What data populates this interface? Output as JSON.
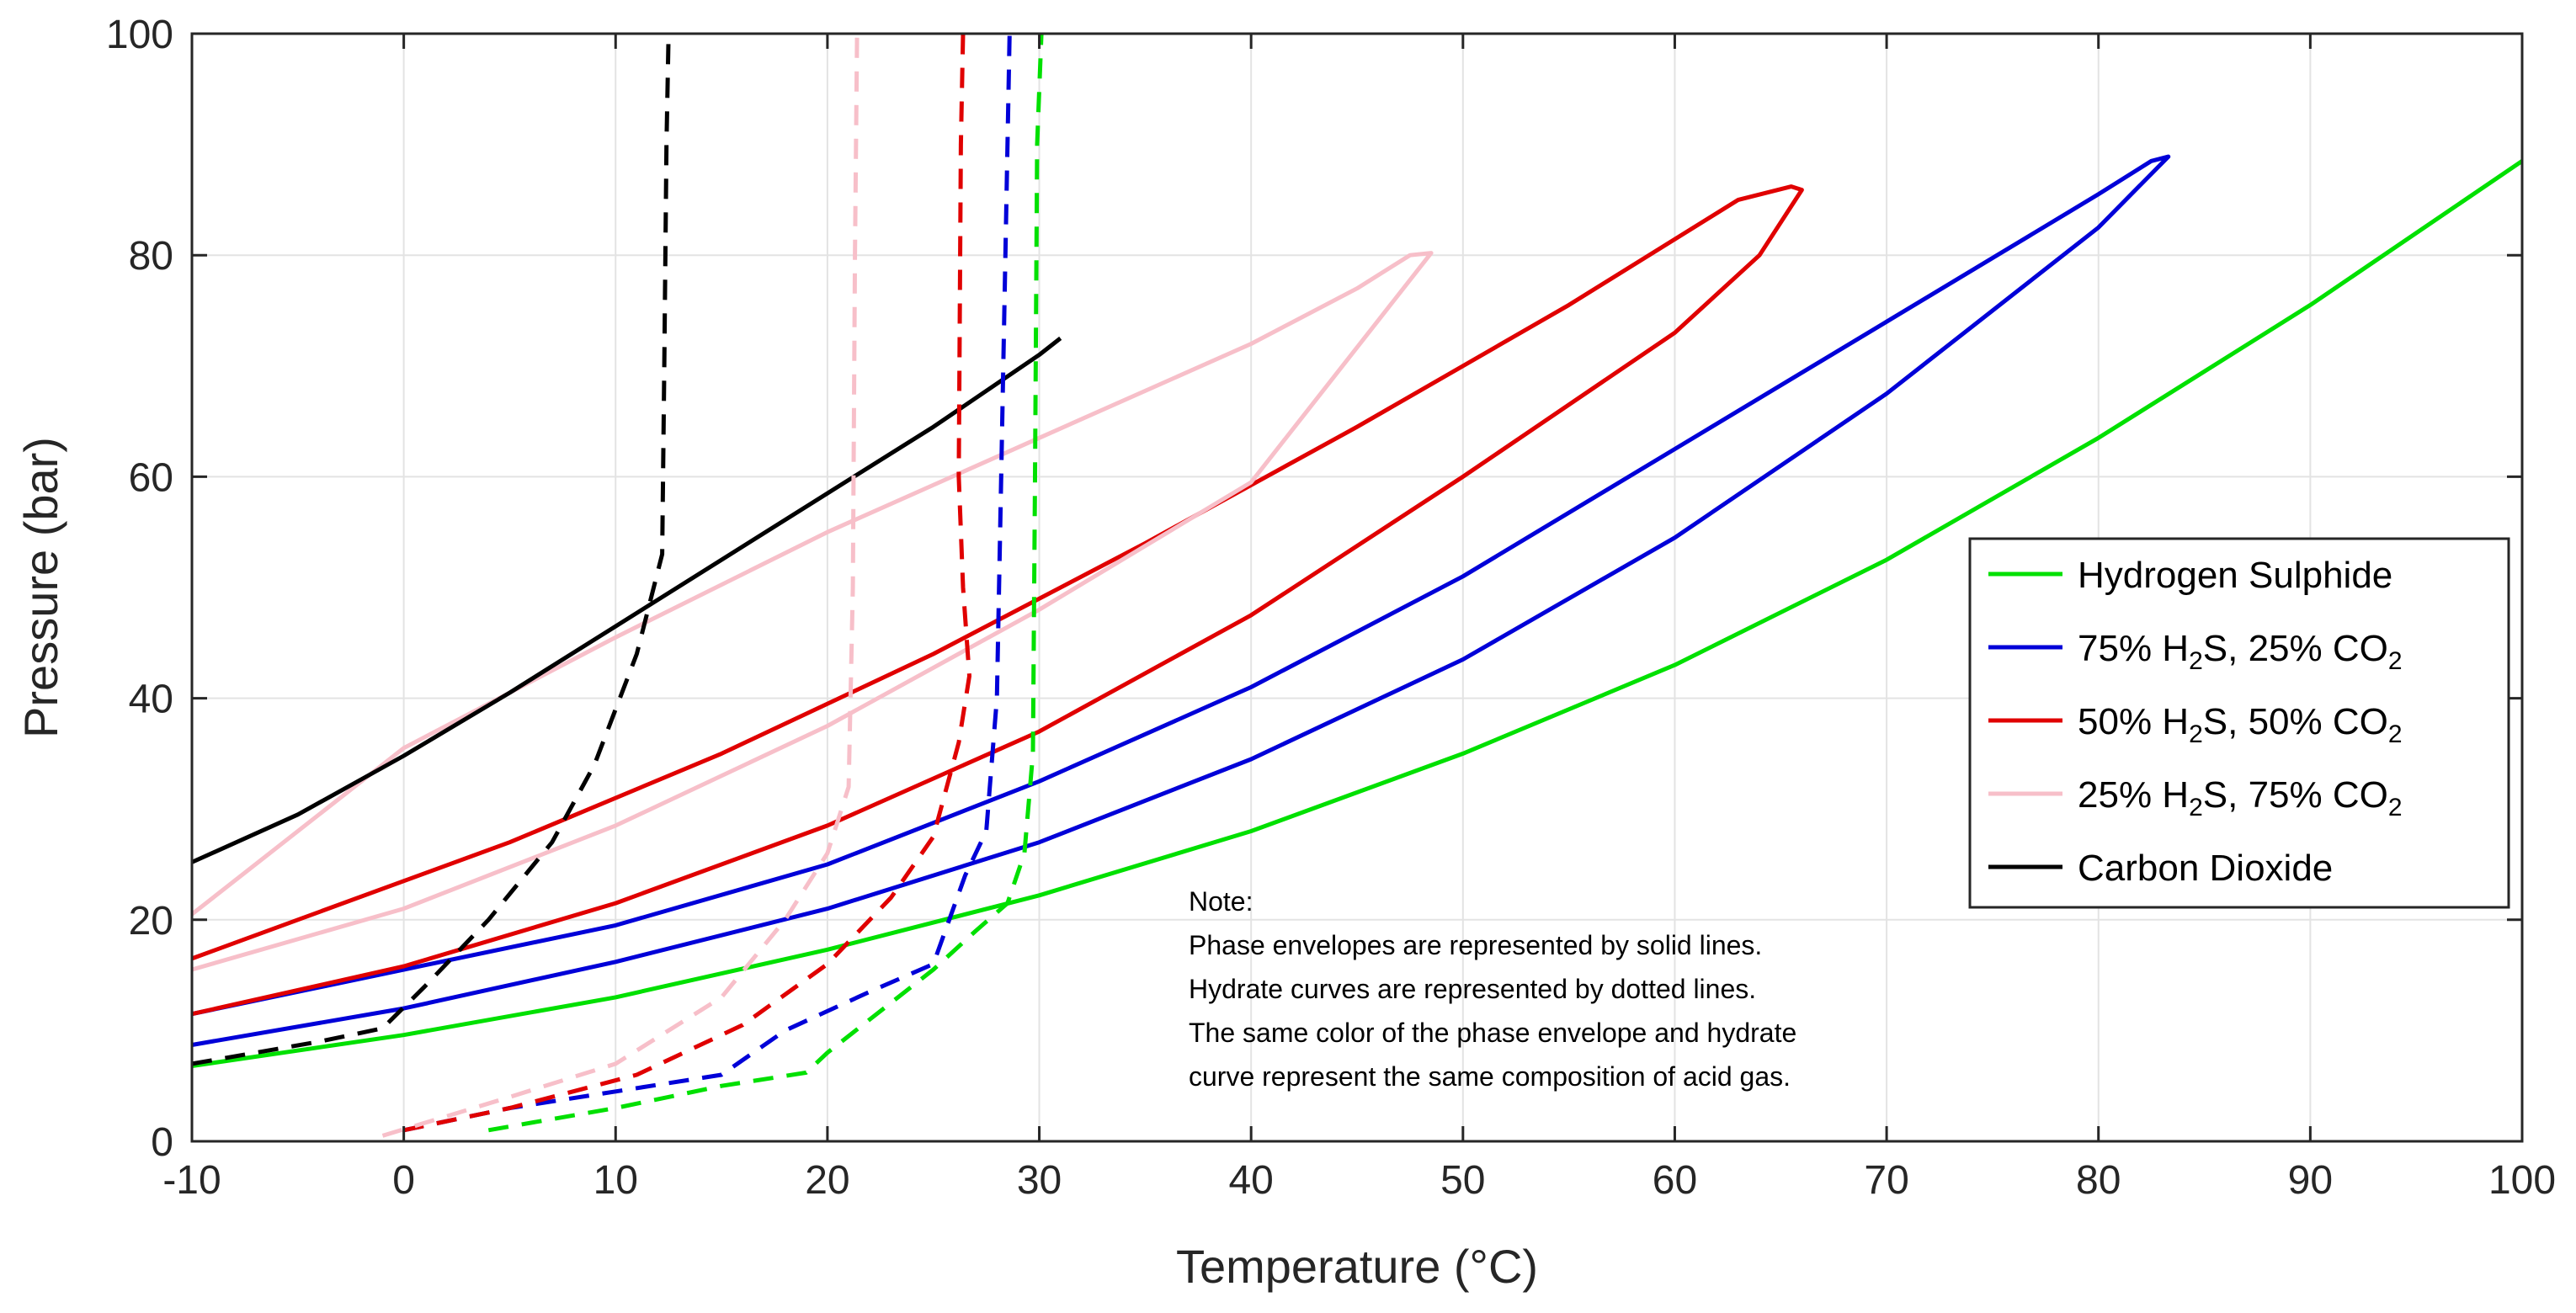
{
  "chart_data": {
    "type": "line",
    "xlabel": "Temperature (°C)",
    "ylabel": "Pressure (bar)",
    "xlim": [
      -10,
      100
    ],
    "ylim": [
      0,
      100
    ],
    "xticks": [
      -10,
      0,
      10,
      20,
      30,
      40,
      50,
      60,
      70,
      80,
      90,
      100
    ],
    "yticks": [
      0,
      20,
      40,
      60,
      80,
      100
    ],
    "grid": true,
    "legend_position": "middle-right",
    "legend": [
      {
        "name": "Hydrogen Sulphide",
        "parts": [
          {
            "t": "Hydrogen Sulphide",
            "sub": false
          }
        ]
      },
      {
        "name": "75% H2S, 25% CO2",
        "parts": [
          {
            "t": "75% H",
            "sub": false
          },
          {
            "t": "2",
            "sub": true
          },
          {
            "t": "S, 25% CO",
            "sub": false
          },
          {
            "t": "2",
            "sub": true
          }
        ]
      },
      {
        "name": "50% H2S, 50% CO2",
        "parts": [
          {
            "t": "50% H",
            "sub": false
          },
          {
            "t": "2",
            "sub": true
          },
          {
            "t": "S, 50% CO",
            "sub": false
          },
          {
            "t": "2",
            "sub": true
          }
        ]
      },
      {
        "name": "25% H2S, 75% CO2",
        "parts": [
          {
            "t": "25% H",
            "sub": false
          },
          {
            "t": "2",
            "sub": true
          },
          {
            "t": "S, 75% CO",
            "sub": false
          },
          {
            "t": "2",
            "sub": true
          }
        ]
      },
      {
        "name": "Carbon Dioxide",
        "parts": [
          {
            "t": "Carbon Dioxide",
            "sub": false
          }
        ]
      }
    ],
    "note": [
      "Note:",
      "Phase envelopes are represented by solid lines.",
      "Hydrate curves are represented by dotted lines.",
      "The same color of the phase envelope and hydrate",
      "curve represent the same composition of acid gas."
    ],
    "colors": {
      "h2s": "#00e000",
      "h2s75": "#0000d8",
      "h2s50": "#e00000",
      "h2s25": "#f7bfc9",
      "co2": "#000000"
    },
    "series": [
      {
        "name": "Hydrogen Sulphide phase envelope",
        "key": "h2s",
        "style": "solid",
        "x": [
          -10,
          0,
          10,
          20,
          30,
          40,
          50,
          60,
          70,
          80,
          90,
          100
        ],
        "y": [
          6.8,
          9.6,
          13,
          17.3,
          22.2,
          28,
          35,
          43,
          52.5,
          63.5,
          75.5,
          88.5
        ]
      },
      {
        "name": "75% H2S, 25% CO2 phase envelope",
        "key": "h2s75",
        "style": "solid",
        "x": [
          -10,
          0,
          10,
          20,
          30,
          40,
          50,
          60,
          70,
          80,
          83.3,
          82.5,
          80,
          70,
          60,
          50,
          40,
          30,
          20,
          10,
          0,
          -10
        ],
        "y": [
          8.7,
          12,
          16.2,
          21,
          27,
          34.5,
          43.5,
          54.5,
          67.5,
          82.5,
          88.9,
          88.5,
          85.5,
          74,
          62.5,
          51,
          41,
          32.5,
          25,
          19.5,
          15.5,
          11.5
        ]
      },
      {
        "name": "50% H2S, 50% CO2 phase envelope",
        "key": "h2s50",
        "style": "solid",
        "x": [
          -10,
          0,
          10,
          20,
          30,
          40,
          50,
          60,
          64,
          66,
          65.5,
          63,
          55,
          45,
          35,
          25,
          15,
          5,
          -5,
          -10
        ],
        "y": [
          11.5,
          15.8,
          21.5,
          28.5,
          37,
          47.5,
          60,
          73,
          80,
          85.9,
          86.2,
          85,
          75.5,
          64.5,
          54,
          44,
          35,
          27,
          20,
          16.5
        ]
      },
      {
        "name": "25% H2S, 75% CO2 phase envelope",
        "key": "h2s25",
        "style": "solid",
        "x": [
          -10,
          0,
          10,
          20,
          30,
          40,
          48.5,
          47.5,
          45,
          40,
          30,
          20,
          10,
          0,
          -10
        ],
        "y": [
          15.5,
          21,
          28.5,
          37.5,
          48,
          59.5,
          80.2,
          80,
          77,
          72,
          63.5,
          55,
          45.5,
          35.5,
          20.5
        ]
      },
      {
        "name": "Carbon Dioxide phase envelope",
        "key": "co2",
        "style": "solid",
        "x": [
          -10,
          -5,
          0,
          5,
          10,
          15,
          20,
          25,
          30,
          31
        ],
        "y": [
          25.2,
          29.5,
          34.8,
          40.5,
          46.5,
          52.5,
          58.5,
          64.5,
          71,
          72.5
        ]
      },
      {
        "name": "Hydrogen Sulphide hydrate curve",
        "key": "h2s",
        "style": "dashed",
        "x": [
          4,
          10,
          15,
          19,
          20,
          22,
          25,
          27,
          28.5,
          29.3,
          29.7,
          29.8,
          29.9,
          30.1
        ],
        "y": [
          1,
          3,
          5,
          6.2,
          8,
          11,
          15.5,
          19,
          21.5,
          26,
          35,
          60,
          90,
          100
        ]
      },
      {
        "name": "75% H2S, 25% CO2 hydrate curve",
        "key": "h2s75",
        "style": "dashed",
        "x": [
          0,
          5,
          10,
          15,
          18,
          22,
          25,
          26.5,
          27.5,
          28,
          28.2,
          28.5,
          28.6
        ],
        "y": [
          1,
          3,
          4.5,
          6,
          10,
          13.5,
          16,
          24,
          28,
          40,
          60,
          90,
          100
        ]
      },
      {
        "name": "50% H2S, 50% CO2 hydrate curve",
        "key": "h2s50",
        "style": "dashed",
        "x": [
          0,
          5,
          11,
          16,
          20,
          23,
          25,
          26.2,
          26.7,
          26.4,
          26.2,
          26.3,
          26.4
        ],
        "y": [
          1,
          3,
          6,
          10.5,
          16,
          22,
          27.5,
          36,
          42,
          50,
          60,
          90,
          100
        ]
      },
      {
        "name": "25% H2S, 75% CO2 hydrate curve",
        "key": "h2s25",
        "style": "dashed",
        "x": [
          -1,
          5,
          10,
          15,
          18,
          20,
          21,
          21.2,
          21.3,
          21.4
        ],
        "y": [
          0.5,
          4,
          7,
          13,
          20,
          26,
          32,
          50,
          80,
          100
        ]
      },
      {
        "name": "Carbon Dioxide hydrate curve",
        "key": "co2",
        "style": "dashed",
        "x": [
          -10,
          -4,
          -1,
          1,
          4,
          7,
          9,
          11,
          12.2,
          12.3,
          12.4,
          12.5
        ],
        "y": [
          7,
          9,
          10.2,
          14,
          20,
          27,
          34,
          44,
          53,
          70,
          90,
          100
        ]
      }
    ]
  }
}
